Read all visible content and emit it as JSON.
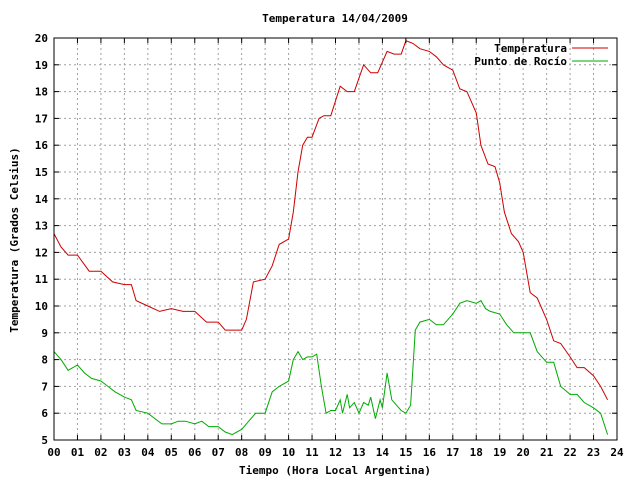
{
  "chart_data": {
    "type": "line",
    "title": "Temperatura 14/04/2009",
    "xlabel": "Tiempo (Hora Local Argentina)",
    "ylabel": "Temperatura (Grados Celsius)",
    "xlim": [
      0,
      24
    ],
    "ylim": [
      5,
      20
    ],
    "x_ticks": [
      "00",
      "01",
      "02",
      "03",
      "04",
      "05",
      "06",
      "07",
      "08",
      "09",
      "10",
      "11",
      "12",
      "13",
      "14",
      "15",
      "16",
      "17",
      "18",
      "19",
      "20",
      "21",
      "22",
      "23",
      "24"
    ],
    "y_ticks": [
      5,
      6,
      7,
      8,
      9,
      10,
      11,
      12,
      13,
      14,
      15,
      16,
      17,
      18,
      19,
      20
    ],
    "grid": true,
    "legend_position": "top-right",
    "series": [
      {
        "name": "Temperatura",
        "color": "#cc0000",
        "x": [
          0,
          0.3,
          0.6,
          1.0,
          1.5,
          2.0,
          2.5,
          3.0,
          3.3,
          3.5,
          4.0,
          4.5,
          5.0,
          5.5,
          6.0,
          6.5,
          7.0,
          7.3,
          7.6,
          8.0,
          8.2,
          8.5,
          9.0,
          9.3,
          9.6,
          10.0,
          10.2,
          10.4,
          10.6,
          10.8,
          11.0,
          11.3,
          11.5,
          11.8,
          12.2,
          12.5,
          12.8,
          13.2,
          13.5,
          13.8,
          14.2,
          14.5,
          14.8,
          15.0,
          15.3,
          15.6,
          16.0,
          16.3,
          16.6,
          17.0,
          17.3,
          17.6,
          18.0,
          18.2,
          18.5,
          18.8,
          19.0,
          19.2,
          19.5,
          19.8,
          20.0,
          20.3,
          20.6,
          21.0,
          21.3,
          21.6,
          22.0,
          22.3,
          22.6,
          23.0,
          23.3,
          23.6
        ],
        "values": [
          12.7,
          12.2,
          11.9,
          11.9,
          11.3,
          11.3,
          10.9,
          10.8,
          10.8,
          10.2,
          10.0,
          9.8,
          9.9,
          9.8,
          9.8,
          9.4,
          9.4,
          9.1,
          9.1,
          9.1,
          9.5,
          10.9,
          11.0,
          11.5,
          12.3,
          12.5,
          13.5,
          15.0,
          16.0,
          16.3,
          16.3,
          17.0,
          17.1,
          17.1,
          18.2,
          18.0,
          18.0,
          19.0,
          18.7,
          18.7,
          19.5,
          19.4,
          19.4,
          19.9,
          19.8,
          19.6,
          19.5,
          19.3,
          19.0,
          18.8,
          18.1,
          18.0,
          17.2,
          16.0,
          15.3,
          15.2,
          14.6,
          13.5,
          12.7,
          12.4,
          12.0,
          10.5,
          10.3,
          9.5,
          8.7,
          8.6,
          8.1,
          7.7,
          7.7,
          7.4,
          7.0,
          6.5
        ]
      },
      {
        "name": "Punto de Rocío",
        "color": "#00aa00",
        "x": [
          0,
          0.3,
          0.6,
          1.0,
          1.3,
          1.6,
          2.0,
          2.3,
          2.6,
          3.0,
          3.3,
          3.5,
          4.0,
          4.3,
          4.6,
          5.0,
          5.3,
          5.6,
          6.0,
          6.3,
          6.6,
          7.0,
          7.3,
          7.6,
          8.0,
          8.3,
          8.6,
          9.0,
          9.3,
          9.6,
          10.0,
          10.2,
          10.4,
          10.6,
          10.8,
          11.0,
          11.2,
          11.4,
          11.6,
          11.8,
          12.0,
          12.2,
          12.3,
          12.5,
          12.6,
          12.8,
          13.0,
          13.2,
          13.4,
          13.5,
          13.7,
          13.9,
          14.0,
          14.2,
          14.4,
          14.6,
          14.8,
          15.0,
          15.2,
          15.4,
          15.6,
          16.0,
          16.3,
          16.6,
          17.0,
          17.3,
          17.6,
          18.0,
          18.2,
          18.4,
          18.6,
          19.0,
          19.3,
          19.6,
          20.0,
          20.3,
          20.6,
          21.0,
          21.3,
          21.6,
          22.0,
          22.3,
          22.6,
          23.0,
          23.3,
          23.6
        ],
        "values": [
          8.3,
          8.0,
          7.6,
          7.8,
          7.5,
          7.3,
          7.2,
          7.0,
          6.8,
          6.6,
          6.5,
          6.1,
          6.0,
          5.8,
          5.6,
          5.6,
          5.7,
          5.7,
          5.6,
          5.7,
          5.5,
          5.5,
          5.3,
          5.2,
          5.4,
          5.7,
          6.0,
          6.0,
          6.8,
          7.0,
          7.2,
          8.0,
          8.3,
          8.0,
          8.1,
          8.1,
          8.2,
          7.0,
          6.0,
          6.1,
          6.1,
          6.5,
          6.0,
          6.7,
          6.2,
          6.4,
          6.0,
          6.4,
          6.3,
          6.6,
          5.8,
          6.5,
          6.2,
          7.5,
          6.5,
          6.3,
          6.1,
          6.0,
          6.3,
          9.1,
          9.4,
          9.5,
          9.3,
          9.3,
          9.7,
          10.1,
          10.2,
          10.1,
          10.2,
          9.9,
          9.8,
          9.7,
          9.3,
          9.0,
          9.0,
          9.0,
          8.3,
          7.9,
          7.9,
          7.0,
          6.7,
          6.7,
          6.4,
          6.2,
          6.0,
          5.2
        ]
      }
    ]
  }
}
